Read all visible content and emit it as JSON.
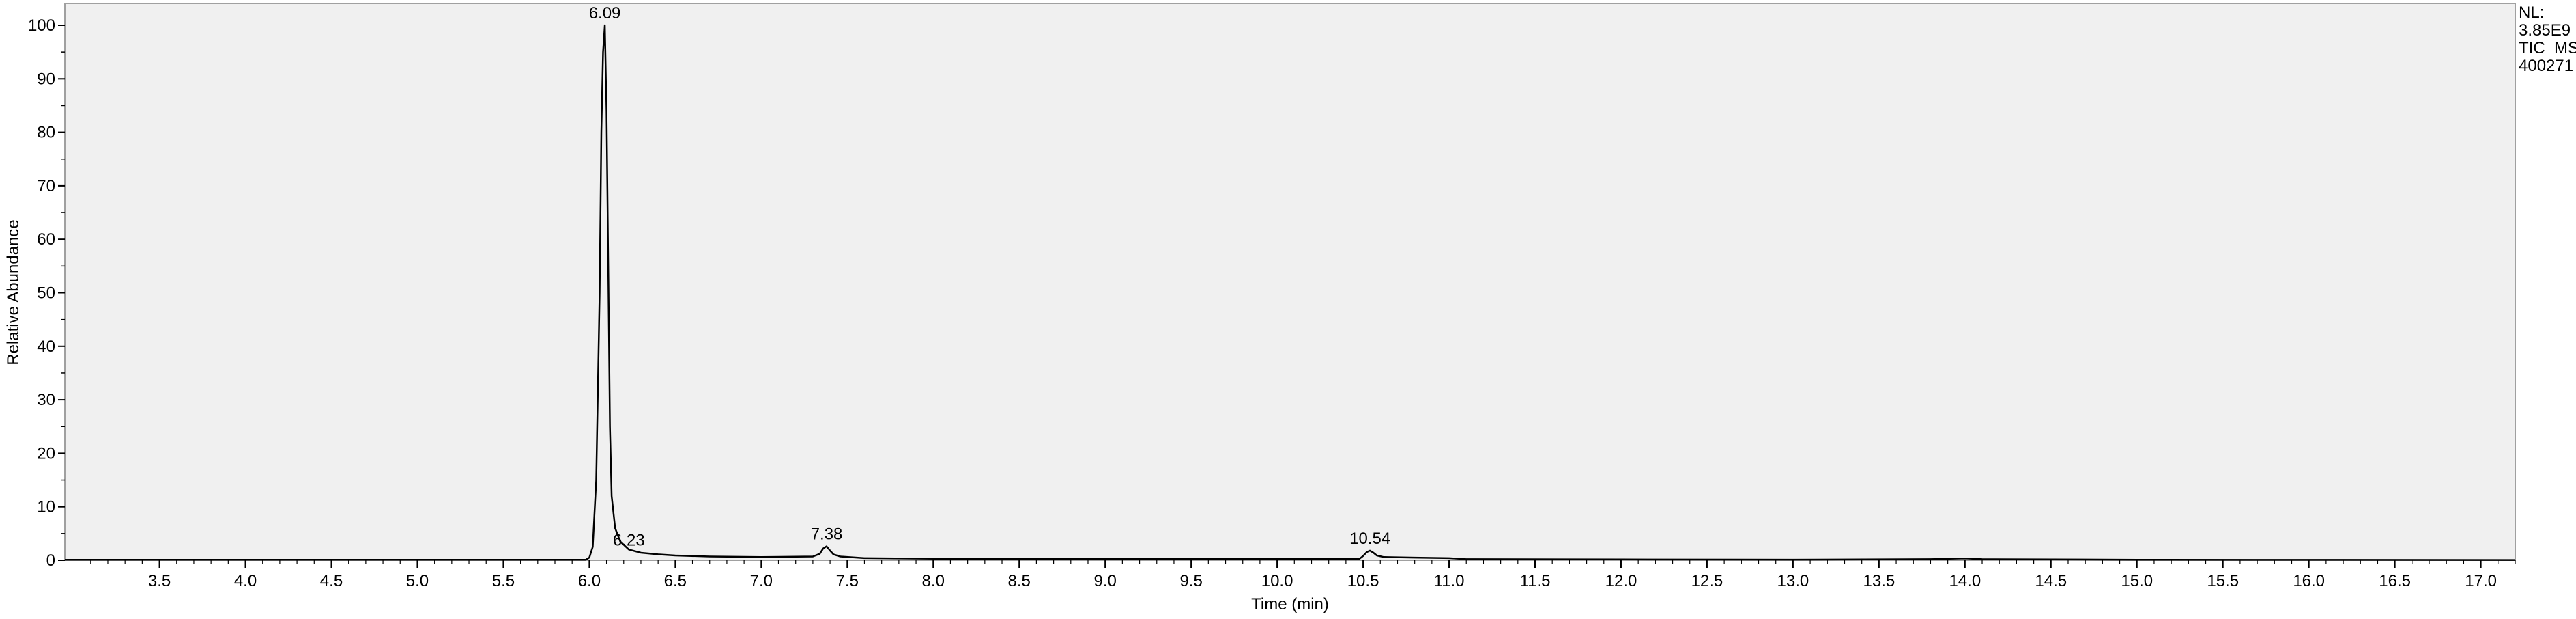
{
  "chart_data": {
    "type": "line",
    "xlabel": "Time (min)",
    "ylabel": "Relative Abundance",
    "xlim": [
      2.95,
      17.2
    ],
    "ylim": [
      0,
      100
    ],
    "x_ticks": [
      "3.5",
      "4.0",
      "4.5",
      "5.0",
      "5.5",
      "6.0",
      "6.5",
      "7.0",
      "7.5",
      "8.0",
      "8.5",
      "9.0",
      "9.5",
      "10.0",
      "10.5",
      "11.0",
      "11.5",
      "12.0",
      "12.5",
      "13.0",
      "13.5",
      "14.0",
      "14.5",
      "15.0",
      "15.5",
      "16.0",
      "16.5",
      "17.0"
    ],
    "y_ticks": [
      "0",
      "10",
      "20",
      "30",
      "40",
      "50",
      "60",
      "70",
      "80",
      "90",
      "100"
    ],
    "grid": false,
    "peak_annotations": [
      {
        "x": 6.09,
        "y": 100,
        "label": "6.09"
      },
      {
        "x": 6.23,
        "y": 1.5,
        "label": "6.23"
      },
      {
        "x": 7.38,
        "y": 2.6,
        "label": "7.38"
      },
      {
        "x": 10.54,
        "y": 1.8,
        "label": "10.54"
      }
    ],
    "series": [
      {
        "x": [
          2.95,
          5.98,
          6.0,
          6.02,
          6.04,
          6.06,
          6.07,
          6.08,
          6.09,
          6.1,
          6.11,
          6.12,
          6.13,
          6.15,
          6.18,
          6.23,
          6.3,
          6.4,
          6.5,
          6.7,
          7.0,
          7.3,
          7.34,
          7.36,
          7.38,
          7.4,
          7.42,
          7.46,
          7.6,
          8.0,
          9.0,
          10.0,
          10.48,
          10.5,
          10.52,
          10.54,
          10.56,
          10.58,
          10.62,
          10.8,
          11.0,
          11.1,
          12.0,
          13.0,
          13.8,
          14.0,
          14.1,
          15.0,
          17.2
        ],
        "y": [
          0.1,
          0.1,
          0.5,
          2.5,
          15,
          50,
          80,
          95,
          100,
          84,
          55,
          25,
          12,
          6,
          3.5,
          2.0,
          1.4,
          1.1,
          0.9,
          0.7,
          0.6,
          0.7,
          1.2,
          2.2,
          2.6,
          1.8,
          1.1,
          0.7,
          0.4,
          0.3,
          0.25,
          0.25,
          0.3,
          0.8,
          1.5,
          1.8,
          1.4,
          0.9,
          0.6,
          0.5,
          0.4,
          0.2,
          0.15,
          0.12,
          0.2,
          0.35,
          0.2,
          0.1,
          0.05
        ]
      }
    ],
    "color": "#000000",
    "plot_background": "#f0f0f0"
  },
  "info": {
    "nl_label": "NL:",
    "nl_value": "3.85E9",
    "trace_type": "TIC  MS",
    "file_id": "400271"
  }
}
